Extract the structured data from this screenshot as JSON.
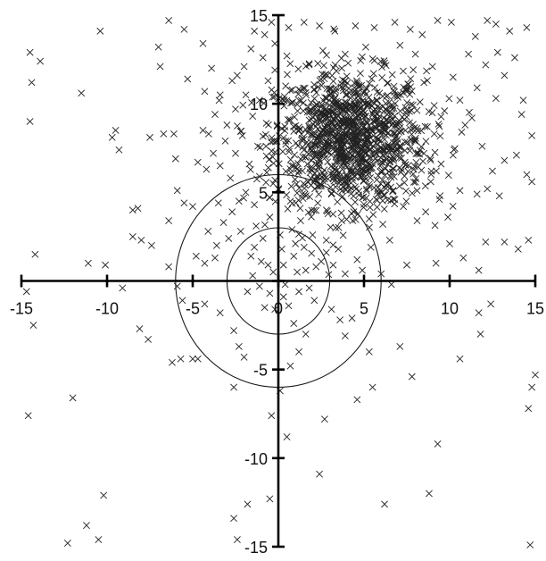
{
  "chart_data": {
    "type": "scatter",
    "marker": "x",
    "marker_color": "#222222",
    "xlim": [
      -15,
      15
    ],
    "ylim": [
      -15,
      15
    ],
    "x_ticks": [
      -15,
      -10,
      -5,
      0,
      5,
      10,
      15
    ],
    "y_ticks": [
      -15,
      -10,
      -5,
      0,
      5,
      10,
      15
    ],
    "x_tick_labels": [
      "-15",
      "-10",
      "-5",
      "0",
      "5",
      "10",
      "15"
    ],
    "y_tick_labels": [
      "-15",
      "-10",
      "-5",
      "5",
      "10",
      "15"
    ],
    "axes_through_origin": true,
    "grid": false,
    "reference_circles": [
      {
        "center": [
          0,
          0
        ],
        "radius": 3
      },
      {
        "center": [
          0,
          0
        ],
        "radius": 6
      }
    ],
    "dense_cluster": {
      "center": [
        4.2,
        8.0
      ],
      "spread": [
        2.2,
        1.9
      ],
      "approx_count": 1200
    },
    "points": [
      [
        -14.5,
        12.9
      ],
      [
        -13.9,
        12.4
      ],
      [
        -14.4,
        11.2
      ],
      [
        -14.5,
        9.0
      ],
      [
        -14.2,
        1.5
      ],
      [
        -14.7,
        -0.6
      ],
      [
        -14.3,
        -2.5
      ],
      [
        -14.6,
        -7.6
      ],
      [
        -12.3,
        -14.8
      ],
      [
        -11.2,
        -13.8
      ],
      [
        -10.5,
        -14.6
      ],
      [
        -10.2,
        -12.1
      ],
      [
        -12.0,
        -6.6
      ],
      [
        -10.4,
        14.1
      ],
      [
        -11.5,
        10.6
      ],
      [
        -9.5,
        8.5
      ],
      [
        -9.7,
        8.1
      ],
      [
        -9.3,
        7.4
      ],
      [
        -7.5,
        8.1
      ],
      [
        -7.0,
        13.2
      ],
      [
        -6.4,
        14.7
      ],
      [
        -5.5,
        14.2
      ],
      [
        -4.4,
        13.4
      ],
      [
        -6.9,
        12.1
      ],
      [
        -5.3,
        11.4
      ],
      [
        -4.3,
        10.7
      ],
      [
        -3.7,
        9.4
      ],
      [
        -3.0,
        8.8
      ],
      [
        -6.7,
        8.3
      ],
      [
        -6.1,
        8.3
      ],
      [
        -6.0,
        6.9
      ],
      [
        -4.7,
        6.7
      ],
      [
        -4.2,
        6.3
      ],
      [
        -3.4,
        6.5
      ],
      [
        -2.8,
        5.8
      ],
      [
        -5.9,
        5.1
      ],
      [
        -5.5,
        4.4
      ],
      [
        -5.0,
        4.2
      ],
      [
        -3.5,
        4.4
      ],
      [
        -2.7,
        3.9
      ],
      [
        -8.5,
        4.0
      ],
      [
        -8.2,
        4.1
      ],
      [
        -8.5,
        2.5
      ],
      [
        -8.0,
        2.3
      ],
      [
        -7.4,
        2.0
      ],
      [
        -6.4,
        3.4
      ],
      [
        -11.1,
        1.0
      ],
      [
        -10.1,
        0.9
      ],
      [
        -9.1,
        -0.4
      ],
      [
        -6.4,
        0.8
      ],
      [
        -4.8,
        1.4
      ],
      [
        -4.3,
        1.0
      ],
      [
        -3.7,
        1.3
      ],
      [
        -5.9,
        -0.3
      ],
      [
        -5.6,
        -1.1
      ],
      [
        -4.3,
        -1.3
      ],
      [
        -3.4,
        -1.8
      ],
      [
        -8.1,
        -2.7
      ],
      [
        -7.6,
        -3.3
      ],
      [
        -6.2,
        -4.6
      ],
      [
        -5.7,
        -4.4
      ],
      [
        -5.0,
        -4.4
      ],
      [
        -4.7,
        -4.4
      ],
      [
        -2.6,
        -2.8
      ],
      [
        -2.3,
        -3.7
      ],
      [
        -2.0,
        -4.3
      ],
      [
        -2.6,
        -6.0
      ],
      [
        -2.6,
        -13.4
      ],
      [
        -2.4,
        -14.6
      ],
      [
        -1.8,
        -12.6
      ],
      [
        -0.5,
        -12.3
      ],
      [
        -0.4,
        -7.6
      ],
      [
        0.5,
        -8.8
      ],
      [
        0.1,
        -6.2
      ],
      [
        1.2,
        -4.0
      ],
      [
        0.7,
        -4.8
      ],
      [
        0.9,
        -2.4
      ],
      [
        1.6,
        -3.0
      ],
      [
        2.7,
        -7.8
      ],
      [
        2.4,
        -10.9
      ],
      [
        3.9,
        -3.1
      ],
      [
        4.3,
        -2.1
      ],
      [
        3.6,
        -2.2
      ],
      [
        3.1,
        -1.6
      ],
      [
        5.3,
        -4.0
      ],
      [
        4.6,
        -6.7
      ],
      [
        5.5,
        -6.0
      ],
      [
        7.1,
        -3.7
      ],
      [
        7.8,
        -5.4
      ],
      [
        6.2,
        -12.6
      ],
      [
        8.8,
        -12.0
      ],
      [
        9.3,
        -9.2
      ],
      [
        10.6,
        -4.4
      ],
      [
        11.8,
        -3.0
      ],
      [
        11.7,
        -1.8
      ],
      [
        12.4,
        -1.3
      ],
      [
        14.6,
        -7.2
      ],
      [
        14.8,
        -6.0
      ],
      [
        15.0,
        -5.3
      ],
      [
        14.7,
        -14.9
      ],
      [
        -1.4,
        1.9
      ],
      [
        -1.0,
        1.1
      ],
      [
        -0.6,
        0.9
      ],
      [
        -0.3,
        0.5
      ],
      [
        0.3,
        0.9
      ],
      [
        0.9,
        1.4
      ],
      [
        1.1,
        0.5
      ],
      [
        1.6,
        0.6
      ],
      [
        2.2,
        0.8
      ],
      [
        2.5,
        1.1
      ],
      [
        -1.5,
        0.3
      ],
      [
        -1.1,
        -0.3
      ],
      [
        -0.5,
        -0.7
      ],
      [
        0.3,
        -0.9
      ],
      [
        0.6,
        -1.4
      ],
      [
        1.2,
        -0.6
      ],
      [
        1.8,
        -0.4
      ],
      [
        2.1,
        -1.1
      ],
      [
        -1.8,
        -0.6
      ],
      [
        -0.8,
        -1.5
      ],
      [
        -0.2,
        -1.6
      ],
      [
        0.4,
        -0.2
      ],
      [
        1.5,
        1.9
      ],
      [
        -1.3,
        3.1
      ],
      [
        -0.5,
        3.6
      ],
      [
        0.8,
        2.9
      ],
      [
        1.3,
        3.4
      ],
      [
        2.0,
        2.6
      ],
      [
        2.8,
        2.3
      ],
      [
        3.5,
        1.8
      ],
      [
        2.8,
        1.6
      ],
      [
        3.2,
        0.9
      ],
      [
        3.9,
        0.4
      ],
      [
        4.6,
        1.2
      ],
      [
        4.9,
        0.6
      ],
      [
        5.4,
        1.9
      ],
      [
        6.0,
        0.4
      ],
      [
        6.5,
        2.3
      ],
      [
        7.5,
        0.9
      ],
      [
        6.6,
        -0.2
      ],
      [
        9.2,
        1.0
      ],
      [
        10.0,
        2.1
      ],
      [
        10.8,
        1.3
      ],
      [
        9.9,
        3.6
      ],
      [
        8.6,
        3.9
      ],
      [
        8.1,
        3.4
      ],
      [
        12.1,
        2.2
      ],
      [
        13.2,
        2.2
      ],
      [
        14.0,
        1.8
      ],
      [
        14.6,
        2.3
      ],
      [
        11.7,
        0.6
      ],
      [
        12.9,
        4.8
      ],
      [
        12.2,
        5.2
      ],
      [
        11.6,
        4.9
      ],
      [
        12.5,
        6.2
      ],
      [
        13.2,
        6.8
      ],
      [
        13.9,
        7.1
      ],
      [
        14.8,
        5.6
      ],
      [
        14.5,
        6.0
      ],
      [
        14.8,
        8.2
      ],
      [
        14.2,
        9.4
      ],
      [
        14.3,
        10.2
      ],
      [
        13.8,
        12.6
      ],
      [
        13.5,
        14.1
      ],
      [
        14.5,
        14.3
      ],
      [
        12.7,
        14.5
      ],
      [
        12.2,
        14.7
      ],
      [
        11.5,
        13.8
      ],
      [
        10.1,
        14.6
      ],
      [
        9.3,
        14.7
      ],
      [
        8.4,
        13.9
      ],
      [
        7.7,
        14.2
      ],
      [
        6.8,
        14.6
      ],
      [
        5.6,
        14.3
      ],
      [
        4.5,
        14.4
      ],
      [
        3.3,
        14.1
      ],
      [
        2.4,
        14.4
      ],
      [
        1.5,
        14.6
      ],
      [
        0.6,
        14.3
      ],
      [
        -0.4,
        14.6
      ],
      [
        -0.8,
        13.9
      ],
      [
        -1.6,
        13.1
      ],
      [
        -2.0,
        12.1
      ],
      [
        -2.4,
        11.6
      ],
      [
        -1.9,
        10.5
      ],
      [
        -1.1,
        10.2
      ],
      [
        -1.5,
        9.3
      ],
      [
        -0.7,
        8.9
      ],
      [
        -2.1,
        8.2
      ],
      [
        -1.2,
        7.6
      ],
      [
        -2.5,
        7.2
      ],
      [
        -1.7,
        6.6
      ],
      [
        -1.1,
        5.9
      ],
      [
        -0.3,
        5.5
      ],
      [
        -1.9,
        5.0
      ],
      [
        -2.3,
        4.5
      ],
      [
        -1.4,
        4.3
      ],
      [
        -0.5,
        4.7
      ],
      [
        0.7,
        4.5
      ],
      [
        1.4,
        4.9
      ],
      [
        2.3,
        4.4
      ],
      [
        3.1,
        4.9
      ],
      [
        3.7,
        3.4
      ],
      [
        4.4,
        3.9
      ],
      [
        5.3,
        3.5
      ],
      [
        6.1,
        3.2
      ],
      [
        6.8,
        4.6
      ],
      [
        7.3,
        4.2
      ],
      [
        8.1,
        5.1
      ],
      [
        8.9,
        5.6
      ],
      [
        9.5,
        6.6
      ],
      [
        10.2,
        7.1
      ],
      [
        10.7,
        8.4
      ],
      [
        11.3,
        9.2
      ],
      [
        10.6,
        10.2
      ],
      [
        11.6,
        10.9
      ],
      [
        10.2,
        11.5
      ],
      [
        9.0,
        12.1
      ],
      [
        8.5,
        11.2
      ],
      [
        7.6,
        11.1
      ],
      [
        9.7,
        9.6
      ],
      [
        10.9,
        8.8
      ],
      [
        11.9,
        7.6
      ],
      [
        9.4,
        4.6
      ],
      [
        10.6,
        5.1
      ],
      [
        7.9,
        6.3
      ],
      [
        8.5,
        7.2
      ],
      [
        9.1,
        8.3
      ],
      [
        6.2,
        12.3
      ],
      [
        5.1,
        13.2
      ],
      [
        3.9,
        12.8
      ],
      [
        2.6,
        13.0
      ],
      [
        1.8,
        12.2
      ],
      [
        0.5,
        12.7
      ],
      [
        -0.2,
        11.9
      ],
      [
        -0.6,
        11.3
      ],
      [
        7.1,
        13.3
      ],
      [
        8.0,
        12.8
      ],
      [
        12.8,
        12.9
      ],
      [
        13.2,
        11.6
      ],
      [
        12.1,
        12.2
      ],
      [
        11.1,
        12.8
      ],
      [
        12.7,
        10.3
      ],
      [
        4.9,
        6.1
      ],
      [
        1.2,
        6.2
      ],
      [
        1.9,
        5.4
      ],
      [
        2.7,
        5.9
      ],
      [
        3.8,
        5.3
      ],
      [
        5.8,
        4.9
      ],
      [
        6.4,
        5.5
      ],
      [
        -3.2,
        3.3
      ],
      [
        -2.2,
        2.8
      ],
      [
        -2.9,
        2.4
      ],
      [
        -3.6,
        2.0
      ],
      [
        -1.6,
        1.4
      ],
      [
        -0.9,
        2.4
      ],
      [
        0.2,
        1.8
      ],
      [
        0.1,
        2.6
      ],
      [
        1.0,
        2.1
      ],
      [
        -4.1,
        2.8
      ],
      [
        -4.4,
        8.5
      ],
      [
        -3.1,
        7.9
      ],
      [
        -3.8,
        7.2
      ],
      [
        -2.5,
        9.7
      ],
      [
        -3.4,
        10.5
      ],
      [
        -2.7,
        11.3
      ],
      [
        -3.9,
        12.0
      ],
      [
        -0.9,
        12.6
      ],
      [
        -0.2,
        13.4
      ],
      [
        -1.4,
        14.1
      ]
    ]
  }
}
